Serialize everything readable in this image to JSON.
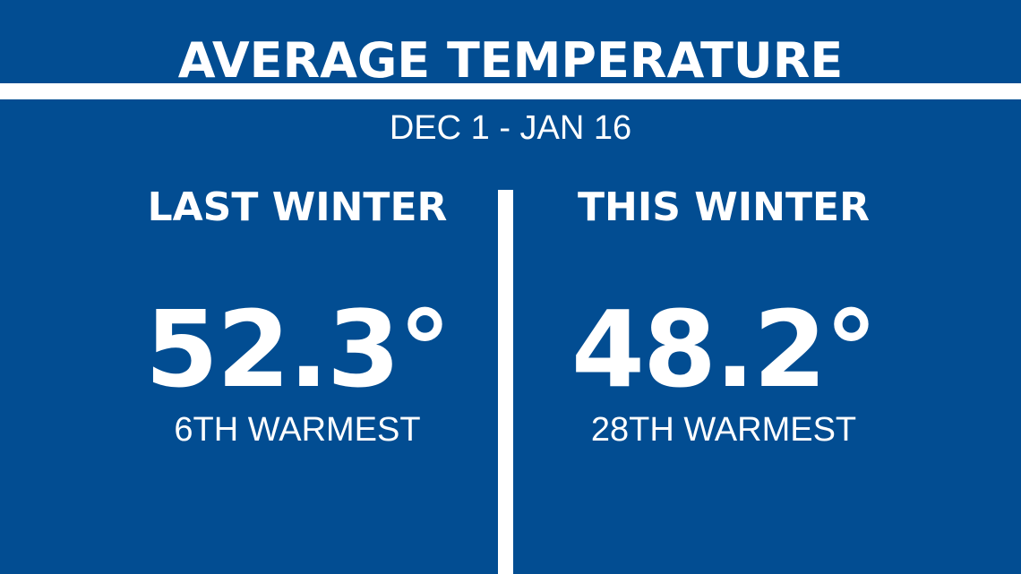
{
  "title": "AVERAGE TEMPERATURE",
  "date_range": "DEC 1 - JAN 16",
  "colors": {
    "background": "#024d92",
    "text": "#ffffff"
  },
  "columns": [
    {
      "heading": "LAST WINTER",
      "temperature": "52.3°",
      "rank": "6TH WARMEST"
    },
    {
      "heading": "THIS WINTER",
      "temperature": "48.2°",
      "rank": "28TH WARMEST"
    }
  ]
}
